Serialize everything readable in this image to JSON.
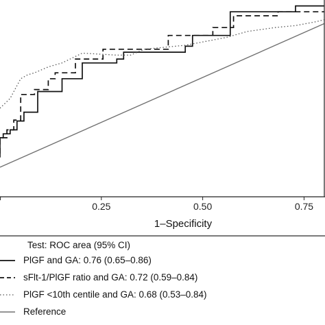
{
  "chart_data": {
    "type": "line",
    "xlabel": "1–Specificity",
    "ylabel": "",
    "xlim": [
      0,
      0.8
    ],
    "ylim": [
      0,
      1
    ],
    "x_ticks": [
      {
        "value": 0.25,
        "label": "0.25"
      },
      {
        "value": 0.5,
        "label": "0.50"
      },
      {
        "value": 0.75,
        "label": "0.75"
      }
    ],
    "grid": false,
    "legend_title": "Test: ROC area (95% CI)",
    "legend_placement": "bottom",
    "series": [
      {
        "name": "PlGF and GA: 0.76 (0.65–0.86)",
        "style": "solid",
        "color": "#111111",
        "x": [
          0,
          0,
          0.008,
          0.008,
          0.025,
          0.025,
          0.042,
          0.042,
          0.059,
          0.059,
          0.093,
          0.093,
          0.153,
          0.153,
          0.203,
          0.203,
          0.288,
          0.288,
          0.305,
          0.305,
          0.457,
          0.457,
          0.475,
          0.475,
          0.568,
          0.568,
          0.729,
          0.729,
          0.8
        ],
        "y": [
          0.2,
          0.3,
          0.3,
          0.32,
          0.32,
          0.34,
          0.34,
          0.385,
          0.385,
          0.43,
          0.43,
          0.535,
          0.535,
          0.6,
          0.6,
          0.68,
          0.68,
          0.7,
          0.7,
          0.735,
          0.735,
          0.765,
          0.765,
          0.82,
          0.82,
          0.94,
          0.94,
          0.97,
          0.97
        ]
      },
      {
        "name": "sFlt-1/PlGF ratio and GA: 0.72 (0.59–0.84)",
        "style": "dashed",
        "color": "#111111",
        "x": [
          0,
          0,
          0.017,
          0.017,
          0.034,
          0.034,
          0.051,
          0.051,
          0.085,
          0.085,
          0.119,
          0.119,
          0.136,
          0.136,
          0.186,
          0.186,
          0.254,
          0.254,
          0.415,
          0.415,
          0.525,
          0.525,
          0.576,
          0.576,
          0.686,
          0.686,
          0.8
        ],
        "y": [
          0.22,
          0.3,
          0.3,
          0.34,
          0.34,
          0.39,
          0.39,
          0.52,
          0.52,
          0.545,
          0.545,
          0.6,
          0.6,
          0.63,
          0.63,
          0.7,
          0.7,
          0.75,
          0.75,
          0.82,
          0.82,
          0.86,
          0.86,
          0.92,
          0.92,
          0.94,
          0.94
        ]
      },
      {
        "name": "PlGF <10th centile and GA: 0.68 (0.53–0.84)",
        "style": "dotted",
        "color": "#555555",
        "x": [
          0,
          0.025,
          0.051,
          0.068,
          0.085,
          0.119,
          0.153,
          0.203,
          0.288,
          0.322,
          0.356,
          0.407,
          0.457,
          0.508,
          0.559,
          0.61,
          0.678,
          0.729,
          0.78,
          0.8
        ],
        "y": [
          0.45,
          0.5,
          0.6,
          0.62,
          0.63,
          0.66,
          0.68,
          0.73,
          0.72,
          0.72,
          0.75,
          0.76,
          0.77,
          0.79,
          0.81,
          0.84,
          0.86,
          0.87,
          0.89,
          0.9
        ]
      },
      {
        "name": "Reference",
        "style": "solid",
        "color": "#707070",
        "x": [
          0,
          0.8
        ],
        "y": [
          0.15,
          0.88
        ]
      }
    ]
  }
}
